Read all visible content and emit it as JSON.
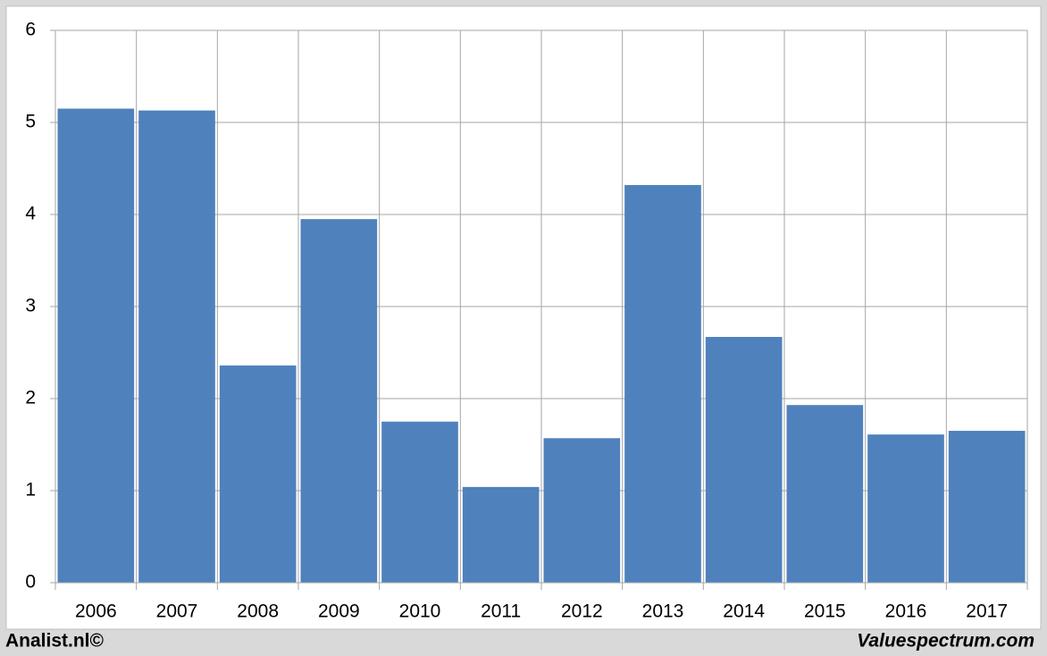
{
  "chart_data": {
    "type": "bar",
    "categories": [
      "2006",
      "2007",
      "2008",
      "2009",
      "2010",
      "2011",
      "2012",
      "2013",
      "2014",
      "2015",
      "2016",
      "2017"
    ],
    "values": [
      5.15,
      5.13,
      2.36,
      3.95,
      1.75,
      1.04,
      1.57,
      4.32,
      2.67,
      1.93,
      1.61,
      1.65
    ],
    "color": "#4f81bd",
    "ylim": [
      0,
      6
    ],
    "yticks": [
      0,
      1,
      2,
      3,
      4,
      5,
      6
    ],
    "grid": true,
    "annotations": [
      "Analist.nl©",
      "Valuespectrum.com"
    ]
  }
}
